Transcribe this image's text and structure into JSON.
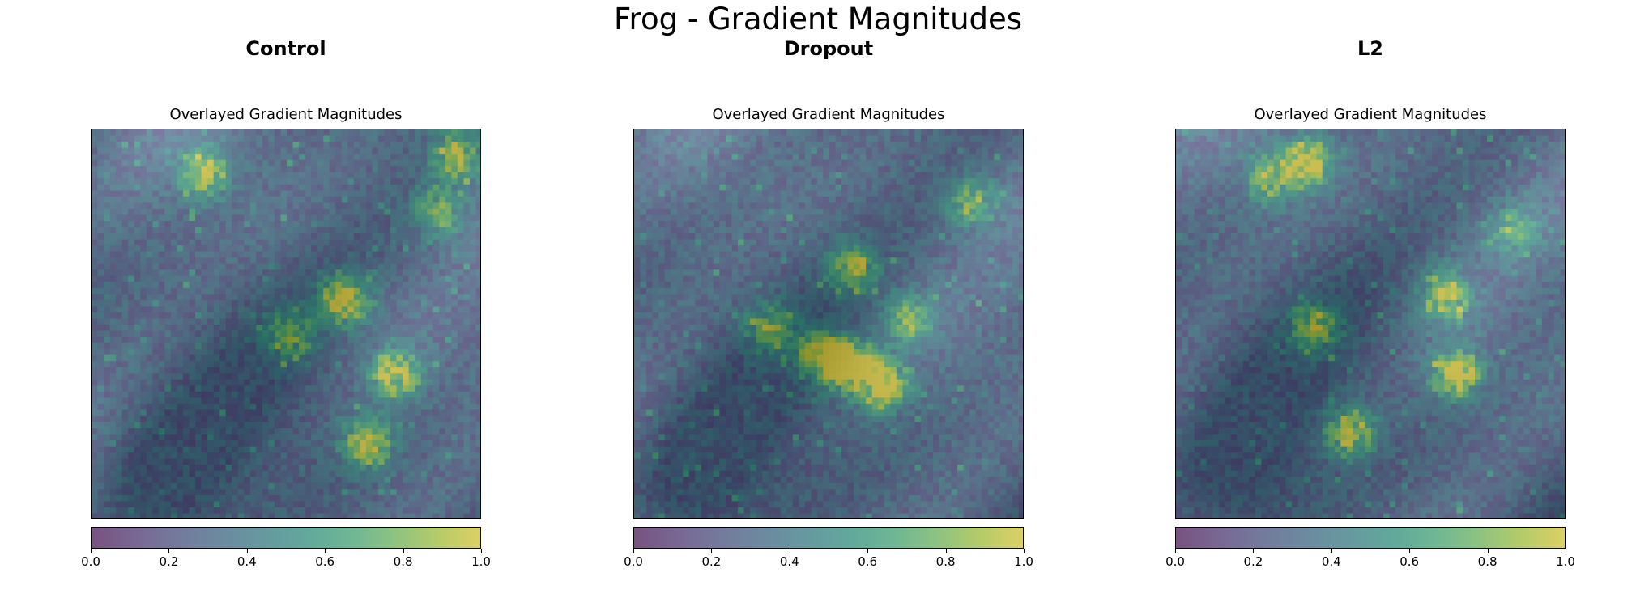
{
  "figure": {
    "title": "Frog - Gradient Magnitudes"
  },
  "chart_data": [
    {
      "type": "heatmap",
      "model": "Control",
      "title": "Overlayed Gradient Magnitudes",
      "colormap": "viridis",
      "overlay_alpha": 0.55,
      "colorbar": {
        "min": 0.0,
        "max": 1.0,
        "ticks": [
          "0.0",
          "0.2",
          "0.4",
          "0.6",
          "0.8",
          "1.0"
        ]
      },
      "grid": false,
      "hotspots": [
        {
          "x": 0.64,
          "y": 0.43,
          "intensity": 1.0
        },
        {
          "x": 0.77,
          "y": 0.62,
          "intensity": 0.95
        },
        {
          "x": 0.7,
          "y": 0.8,
          "intensity": 0.9
        },
        {
          "x": 0.28,
          "y": 0.1,
          "intensity": 0.85
        },
        {
          "x": 0.93,
          "y": 0.06,
          "intensity": 0.8
        },
        {
          "x": 0.5,
          "y": 0.52,
          "intensity": 0.7
        },
        {
          "x": 0.88,
          "y": 0.2,
          "intensity": 0.6
        }
      ]
    },
    {
      "type": "heatmap",
      "model": "Dropout",
      "title": "Overlayed Gradient Magnitudes",
      "colormap": "viridis",
      "overlay_alpha": 0.55,
      "colorbar": {
        "min": 0.0,
        "max": 1.0,
        "ticks": [
          "0.0",
          "0.2",
          "0.4",
          "0.6",
          "0.8",
          "1.0"
        ]
      },
      "grid": false,
      "hotspots": [
        {
          "x": 0.55,
          "y": 0.6,
          "intensity": 1.0
        },
        {
          "x": 0.63,
          "y": 0.65,
          "intensity": 1.0
        },
        {
          "x": 0.47,
          "y": 0.57,
          "intensity": 0.9
        },
        {
          "x": 0.55,
          "y": 0.35,
          "intensity": 0.8
        },
        {
          "x": 0.34,
          "y": 0.5,
          "intensity": 0.7
        },
        {
          "x": 0.7,
          "y": 0.48,
          "intensity": 0.65
        },
        {
          "x": 0.86,
          "y": 0.18,
          "intensity": 0.6
        }
      ]
    },
    {
      "type": "heatmap",
      "model": "L2",
      "title": "Overlayed Gradient Magnitudes",
      "colormap": "viridis",
      "overlay_alpha": 0.55,
      "colorbar": {
        "min": 0.0,
        "max": 1.0,
        "ticks": [
          "0.0",
          "0.2",
          "0.4",
          "0.6",
          "0.8",
          "1.0"
        ]
      },
      "grid": false,
      "hotspots": [
        {
          "x": 0.33,
          "y": 0.08,
          "intensity": 1.0
        },
        {
          "x": 0.71,
          "y": 0.62,
          "intensity": 0.95
        },
        {
          "x": 0.68,
          "y": 0.42,
          "intensity": 0.85
        },
        {
          "x": 0.44,
          "y": 0.77,
          "intensity": 0.85
        },
        {
          "x": 0.35,
          "y": 0.5,
          "intensity": 0.75
        },
        {
          "x": 0.23,
          "y": 0.12,
          "intensity": 0.6
        },
        {
          "x": 0.86,
          "y": 0.25,
          "intensity": 0.55
        }
      ]
    }
  ]
}
